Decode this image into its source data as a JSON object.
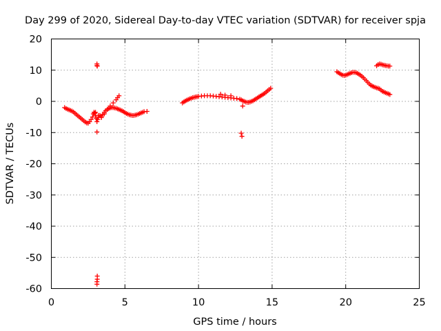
{
  "chart_data": {
    "type": "scatter",
    "title": "Day 299 of 2020, Sidereal Day-to-day VTEC variation (SDTVAR) for receiver spja",
    "xlabel": "GPS time / hours",
    "ylabel": "SDTVAR / TECUs",
    "xlim": [
      0,
      25
    ],
    "ylim": [
      -60,
      20
    ],
    "xticks": [
      0,
      5,
      10,
      15,
      20,
      25
    ],
    "yticks": [
      -60,
      -50,
      -40,
      -30,
      -20,
      -10,
      0,
      10,
      20
    ],
    "grid": true,
    "marker": "plus",
    "color": "#ff0000",
    "series": [
      {
        "name": "SDTVAR",
        "x": [
          0.9,
          1.0,
          1.1,
          1.2,
          1.3,
          1.4,
          1.5,
          1.6,
          1.7,
          1.8,
          1.9,
          2.0,
          2.1,
          2.2,
          2.3,
          2.4,
          2.5,
          2.6,
          2.7,
          2.8,
          2.85,
          2.9,
          2.95,
          3.0,
          3.05,
          3.1,
          3.15,
          3.2,
          3.3,
          3.4,
          3.5,
          3.6,
          3.7,
          3.8,
          3.9,
          4.0,
          4.1,
          4.2,
          4.3,
          4.4,
          4.5,
          4.6,
          4.7,
          4.8,
          4.9,
          5.0,
          5.1,
          5.2,
          5.3,
          5.4,
          5.5,
          5.6,
          5.7,
          5.8,
          5.9,
          6.0,
          6.1,
          6.2,
          6.3,
          6.5,
          3.1,
          3.1,
          3.12,
          3.1,
          3.12,
          3.12,
          3.1,
          3.1,
          3.0,
          3.2,
          3.4,
          3.6,
          3.8,
          4.0,
          4.2,
          4.4,
          4.5,
          4.6,
          8.9,
          9.0,
          9.1,
          9.2,
          9.3,
          9.4,
          9.5,
          9.6,
          9.7,
          9.8,
          9.9,
          10.0,
          10.2,
          10.4,
          10.6,
          10.8,
          11.0,
          11.2,
          11.4,
          11.6,
          11.8,
          12.0,
          12.2,
          12.4,
          12.6,
          12.8,
          12.9,
          13.0,
          13.1,
          13.2,
          13.3,
          13.4,
          13.5,
          13.6,
          13.7,
          13.8,
          13.9,
          14.0,
          14.1,
          14.2,
          14.3,
          14.4,
          14.5,
          14.6,
          14.7,
          14.8,
          14.9,
          12.9,
          12.95,
          13.0,
          11.5,
          11.8,
          12.2,
          19.4,
          19.5,
          19.6,
          19.7,
          19.8,
          19.9,
          20.0,
          20.1,
          20.2,
          20.3,
          20.4,
          20.5,
          20.6,
          20.7,
          20.8,
          20.9,
          21.0,
          21.1,
          21.2,
          21.3,
          21.4,
          21.5,
          21.6,
          21.7,
          21.8,
          21.9,
          22.0,
          22.1,
          22.2,
          22.3,
          22.4,
          22.5,
          22.6,
          22.7,
          22.8,
          22.9,
          23.0,
          22.1,
          22.2,
          22.3,
          22.4,
          22.5,
          22.6,
          22.7,
          22.8,
          22.9,
          23.0
        ],
        "y": [
          -2.0,
          -2.3,
          -2.5,
          -2.7,
          -2.9,
          -3.1,
          -3.4,
          -3.8,
          -4.2,
          -4.6,
          -5.0,
          -5.4,
          -5.8,
          -6.2,
          -6.6,
          -6.9,
          -7.0,
          -6.5,
          -5.8,
          -5.0,
          -4.0,
          -3.5,
          -3.8,
          -4.5,
          -5.5,
          -6.5,
          -5.8,
          -5.0,
          -4.5,
          -4.8,
          -4.2,
          -3.5,
          -3.0,
          -2.6,
          -2.3,
          -2.1,
          -2.0,
          -2.0,
          -2.1,
          -2.2,
          -2.4,
          -2.6,
          -2.8,
          -3.0,
          -3.3,
          -3.6,
          -3.9,
          -4.1,
          -4.3,
          -4.4,
          -4.5,
          -4.5,
          -4.4,
          -4.3,
          -4.1,
          -3.9,
          -3.7,
          -3.5,
          -3.3,
          -3.2,
          11.5,
          12.0,
          11.3,
          -9.8,
          -56.0,
          -57.0,
          -57.8,
          -58.6,
          -3.5,
          -4.5,
          -5.2,
          -4.0,
          -2.5,
          -1.5,
          -0.5,
          0.5,
          1.2,
          1.8,
          -0.5,
          -0.2,
          0.1,
          0.4,
          0.6,
          0.8,
          1.0,
          1.2,
          1.3,
          1.4,
          1.5,
          1.6,
          1.7,
          1.8,
          1.8,
          1.8,
          1.7,
          1.6,
          1.5,
          1.4,
          1.3,
          1.2,
          1.1,
          1.0,
          0.9,
          0.7,
          0.5,
          0.2,
          0.0,
          -0.2,
          -0.3,
          -0.3,
          -0.2,
          0.0,
          0.2,
          0.5,
          0.8,
          1.1,
          1.4,
          1.7,
          2.0,
          2.3,
          2.6,
          3.0,
          3.4,
          3.8,
          4.2,
          -10.2,
          -11.2,
          -1.5,
          2.3,
          2.0,
          1.8,
          9.5,
          9.2,
          8.9,
          8.6,
          8.4,
          8.3,
          8.4,
          8.6,
          8.8,
          9.0,
          9.2,
          9.3,
          9.3,
          9.2,
          9.0,
          8.7,
          8.4,
          8.0,
          7.6,
          7.1,
          6.6,
          6.1,
          5.6,
          5.2,
          4.9,
          4.7,
          4.5,
          4.3,
          4.2,
          4.0,
          3.6,
          3.2,
          3.0,
          2.8,
          2.6,
          2.4,
          2.2,
          11.4,
          11.8,
          12.0,
          11.9,
          11.7,
          11.6,
          11.5,
          11.4,
          11.3,
          11.3
        ]
      }
    ]
  }
}
